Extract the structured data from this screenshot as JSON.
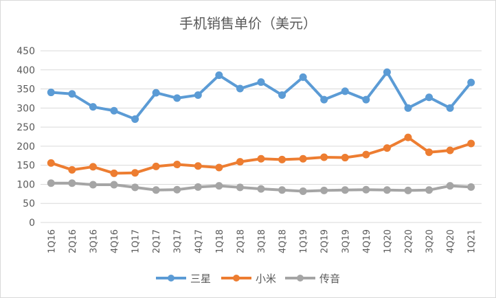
{
  "chart_data": {
    "type": "line",
    "title": "手机销售单价（美元）",
    "xlabel": "",
    "ylabel": "",
    "ylim": [
      0,
      450
    ],
    "y_ticks": [
      0,
      50,
      100,
      150,
      200,
      250,
      300,
      350,
      400,
      450
    ],
    "grid": true,
    "legend_position": "bottom",
    "categories": [
      "1Q16",
      "2Q16",
      "3Q16",
      "4Q16",
      "1Q17",
      "2Q17",
      "3Q17",
      "4Q17",
      "1Q18",
      "2Q18",
      "3Q18",
      "4Q18",
      "1Q19",
      "2Q19",
      "3Q19",
      "4Q19",
      "1Q20",
      "2Q20",
      "3Q20",
      "4Q20",
      "1Q21"
    ],
    "series": [
      {
        "name": "三星",
        "color": "#5b9bd5",
        "values": [
          341,
          337,
          303,
          293,
          271,
          340,
          326,
          334,
          386,
          351,
          368,
          334,
          381,
          322,
          344,
          322,
          394,
          300,
          328,
          300,
          367
        ]
      },
      {
        "name": "小米",
        "color": "#ed7d31",
        "values": [
          156,
          138,
          146,
          129,
          130,
          147,
          152,
          148,
          144,
          159,
          167,
          165,
          167,
          171,
          170,
          178,
          195,
          223,
          184,
          189,
          207
        ]
      },
      {
        "name": "传音",
        "color": "#a5a5a5",
        "values": [
          103,
          103,
          99,
          99,
          92,
          85,
          86,
          93,
          96,
          92,
          88,
          85,
          82,
          84,
          85,
          86,
          85,
          84,
          85,
          96,
          93
        ]
      }
    ]
  }
}
